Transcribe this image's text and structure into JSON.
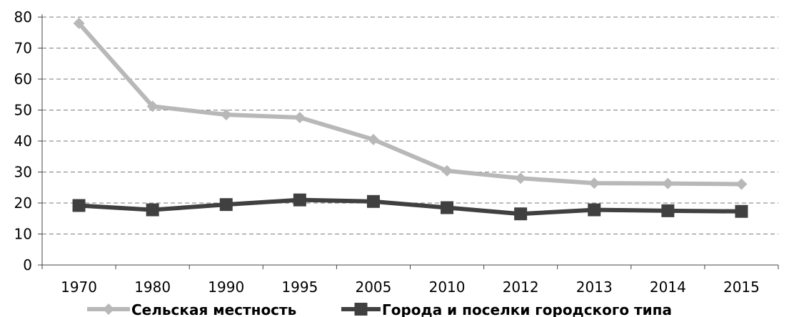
{
  "chart_data": {
    "type": "line",
    "categories": [
      "1970",
      "1980",
      "1990",
      "1995",
      "2005",
      "2010",
      "2012",
      "2013",
      "2014",
      "2015"
    ],
    "series": [
      {
        "name": "Сельская местность",
        "values": [
          78.0,
          51.2,
          48.5,
          47.6,
          40.5,
          30.4,
          28.0,
          26.4,
          26.3,
          26.1
        ],
        "color": "#b8b8b8",
        "marker": "diamond"
      },
      {
        "name": "Города и поселки городского типа",
        "values": [
          19.2,
          17.8,
          19.5,
          21.0,
          20.5,
          18.5,
          16.5,
          17.8,
          17.5,
          17.3
        ],
        "color": "#404040",
        "marker": "square"
      }
    ],
    "ylim": [
      0,
      80
    ],
    "yticks": [
      0,
      10,
      20,
      30,
      40,
      50,
      60,
      70,
      80
    ],
    "grid": true,
    "legend_position": "bottom"
  }
}
